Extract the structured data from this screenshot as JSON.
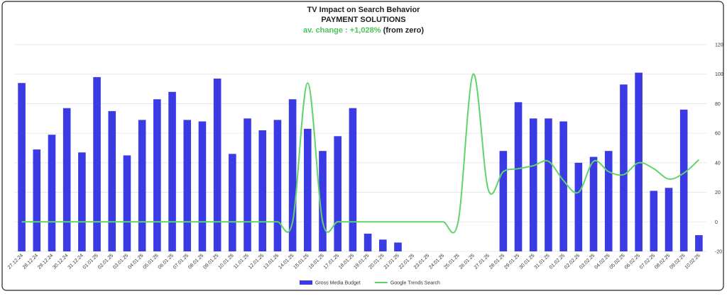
{
  "chart_data": {
    "type": "bar_line",
    "title": "TV Impact on Search Behavior",
    "subtitle": "PAYMENT SOLUTIONS",
    "annotation": "av. change : +1,028%",
    "annotation_note": "(from zero)",
    "categories": [
      "27.12.24",
      "28.12.24",
      "29.12.24",
      "30.12.24",
      "31.12.24",
      "01.01.25",
      "02.01.25",
      "03.01.25",
      "04.01.25",
      "05.01.25",
      "06.01.25",
      "07.01.25",
      "08.01.25",
      "09.01.25",
      "10.01.25",
      "11.01.25",
      "12.01.25",
      "13.01.25",
      "14.01.25",
      "15.01.25",
      "16.01.25",
      "17.01.25",
      "18.01.25",
      "19.01.25",
      "20.01.25",
      "21.01.25",
      "22.01.25",
      "23.01.25",
      "24.01.25",
      "25.01.25",
      "26.01.25",
      "27.01.25",
      "28.01.25",
      "29.01.25",
      "30.01.25",
      "31.01.25",
      "01.02.25",
      "02.02.25",
      "03.02.25",
      "04.02.25",
      "05.02.25",
      "06.02.25",
      "07.02.25",
      "08.02.25",
      "09.02.25",
      "10.02.25"
    ],
    "series": [
      {
        "name": "Gross Media Budget",
        "type": "bar",
        "color": "#3b3be6",
        "values": [
          94,
          49,
          59,
          77,
          47,
          98,
          75,
          45,
          69,
          83,
          88,
          69,
          68,
          97,
          46,
          70,
          62,
          69,
          83,
          63,
          48,
          58,
          77,
          -8,
          -12,
          -14,
          null,
          null,
          null,
          null,
          null,
          null,
          48,
          81,
          70,
          70,
          68,
          40,
          44,
          48,
          93,
          101,
          21,
          23,
          76,
          -9
        ]
      },
      {
        "name": "Google Trends Search",
        "type": "line",
        "color": "#5fd46a",
        "values": [
          0,
          0,
          0,
          0,
          0,
          0,
          0,
          0,
          0,
          0,
          0,
          0,
          0,
          0,
          0,
          0,
          0,
          0,
          0,
          94,
          0,
          0,
          0,
          0,
          0,
          0,
          0,
          0,
          0,
          0,
          100,
          22,
          34,
          36,
          38,
          41,
          28,
          20,
          41,
          34,
          32,
          40,
          36,
          29,
          33,
          42
        ]
      }
    ],
    "ylim": [
      -20,
      120
    ],
    "yticks": [
      -20,
      0,
      20,
      40,
      60,
      80,
      100,
      120
    ],
    "y_axis_side": "right",
    "grid": true,
    "legend": "bottom"
  }
}
